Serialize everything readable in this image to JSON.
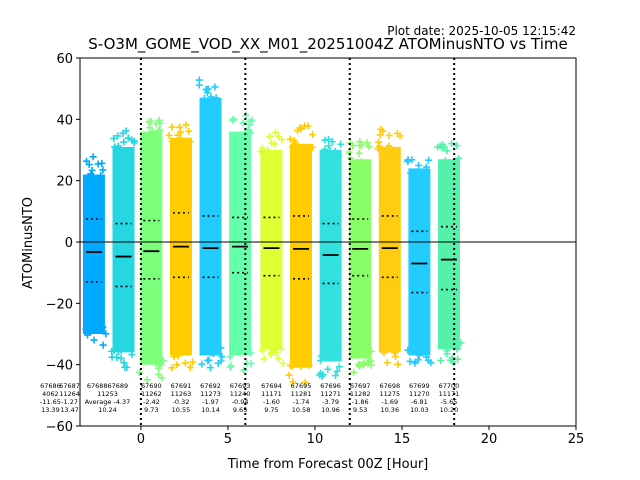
{
  "plot_date": "Plot date: 2025-10-05 12:15:42",
  "chart_data": {
    "type": "scatter",
    "title": "S-O3M_GOME_VOD_XX_M01_20251004Z ATOMinusNTO vs Time",
    "xlabel": "Time from Forecast 00Z [Hour]",
    "ylabel": "ATOMinusNTO",
    "xlim": [
      -3.5,
      25
    ],
    "ylim": [
      -60,
      60
    ],
    "xticks": [
      "0",
      "5",
      "10",
      "15",
      "20",
      "25"
    ],
    "yticks": [
      "−60",
      "−40",
      "−20",
      "0",
      "20",
      "40",
      "60"
    ],
    "vlines": [
      0,
      6,
      12,
      18
    ],
    "hline": 0,
    "orbits": [
      {
        "x": -2.7,
        "orbit": "67686",
        "count": "4062",
        "mean": "-11.65",
        "std": "13.39",
        "lo": -35,
        "hi": 28,
        "color": "#00aaff",
        "q1": -13,
        "q3": 7.5,
        "stat_x": -5.2
      },
      {
        "x": -1.0,
        "orbit": "67687",
        "count": "11264",
        "mean": "-1.27",
        "std": "13.47",
        "lo": -41,
        "hi": 37,
        "color": "#26d6e0",
        "q1": -14.5,
        "q3": 6,
        "stat_x": -4.1
      },
      {
        "x": 0.6,
        "orbit": "67690",
        "count": "11262",
        "mean": "-2.42",
        "std": "9.73",
        "lo": -45,
        "hi": 42,
        "color": "#7cff7a",
        "q1": -12,
        "q3": 7,
        "stat_x": 0.6
      },
      {
        "x": 2.3,
        "orbit": "67691",
        "count": "11263",
        "mean": "-0.32",
        "std": "10.55",
        "lo": -42,
        "hi": 40,
        "color": "#ffcc00",
        "q1": -11.5,
        "q3": 9.5,
        "stat_x": 2.3
      },
      {
        "x": 4.0,
        "orbit": "67692",
        "count": "11273",
        "mean": "-1.97",
        "std": "10.14",
        "lo": -42,
        "hi": 53,
        "color": "#22ccff",
        "q1": -11.5,
        "q3": 8.5,
        "stat_x": 4.0
      },
      {
        "x": 5.7,
        "orbit": "67693",
        "count": "11240",
        "mean": "-0.94",
        "std": "9.65",
        "lo": -42,
        "hi": 42,
        "color": "#66ffaa",
        "q1": -10,
        "q3": 8,
        "stat_x": 5.7
      },
      {
        "x": 7.5,
        "orbit": "67694",
        "count": "11171",
        "mean": "-1.60",
        "std": "9.75",
        "lo": -40,
        "hi": 36,
        "color": "#ddff33",
        "q1": -11,
        "q3": 8,
        "stat_x": 7.5
      },
      {
        "x": 9.2,
        "orbit": "67695",
        "count": "11281",
        "mean": "-1.74",
        "std": "10.58",
        "lo": -46,
        "hi": 38,
        "color": "#ffcc00",
        "q1": -12,
        "q3": 8.5,
        "stat_x": 9.2
      },
      {
        "x": 10.9,
        "orbit": "67696",
        "count": "11271",
        "mean": "-3.79",
        "std": "10.96",
        "lo": -44,
        "hi": 36,
        "color": "#33e0e0",
        "q1": -13.5,
        "q3": 6,
        "stat_x": 10.9
      },
      {
        "x": 12.6,
        "orbit": "67697",
        "count": "11282",
        "mean": "-1.86",
        "std": "9.53",
        "lo": -43,
        "hi": 33,
        "color": "#88ff66",
        "q1": -11,
        "q3": 7.5,
        "stat_x": 12.6
      },
      {
        "x": 14.3,
        "orbit": "67698",
        "count": "11275",
        "mean": "-1.69",
        "std": "10.36",
        "lo": -41,
        "hi": 37,
        "color": "#ffcc11",
        "q1": -11.5,
        "q3": 8.5,
        "stat_x": 14.3
      },
      {
        "x": 16.0,
        "orbit": "67699",
        "count": "11270",
        "mean": "-6.81",
        "std": "10.03",
        "lo": -42,
        "hi": 30,
        "color": "#22ccff",
        "q1": -16.5,
        "q3": 3.5,
        "stat_x": 16.0
      },
      {
        "x": 17.7,
        "orbit": "67700",
        "count": "11171",
        "mean": "-5.65",
        "std": "10.20",
        "lo": -40,
        "hi": 33,
        "color": "#55f0aa",
        "q1": -15.5,
        "q3": 5,
        "stat_x": 17.7
      }
    ],
    "overlay_stats": {
      "label": "Average",
      "orbit_a": "67688",
      "orbit_b": "67689",
      "count": "11253",
      "mean": "-4.37",
      "std": "10.24",
      "stat_x": -1.0
    }
  }
}
